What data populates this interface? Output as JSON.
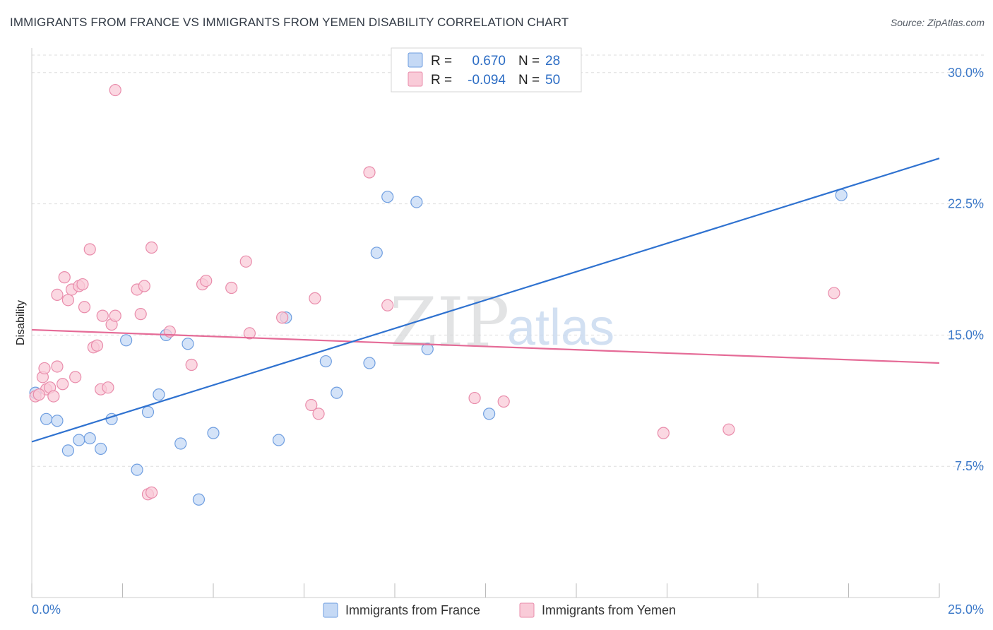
{
  "title": "IMMIGRANTS FROM FRANCE VS IMMIGRANTS FROM YEMEN DISABILITY CORRELATION CHART",
  "source": "Source: ZipAtlas.com",
  "watermark": {
    "zip": "ZIP",
    "atlas": "atlas"
  },
  "colors": {
    "france_fill": "#c5d9f5",
    "france_stroke": "#6f9ee0",
    "france_line": "#2f72d0",
    "yemen_fill": "#f9cbd8",
    "yemen_stroke": "#e98cab",
    "yemen_line": "#e56b97",
    "axis_text": "#3b78c8",
    "grid": "#dddddd"
  },
  "legend": {
    "rows": [
      {
        "r_label": "R =",
        "r_value": "0.670",
        "n_label": "N =",
        "n_value": "28"
      },
      {
        "r_label": "R =",
        "r_value": "-0.094",
        "n_label": "N =",
        "n_value": "50"
      }
    ]
  },
  "chart_data": {
    "type": "scatter",
    "title": "IMMIGRANTS FROM FRANCE VS IMMIGRANTS FROM YEMEN DISABILITY CORRELATION CHART",
    "xlabel": "",
    "ylabel": "Disability",
    "xlim": [
      0,
      25
    ],
    "ylim": [
      0,
      31
    ],
    "x_tick_labels": [
      "0.0%",
      "25.0%"
    ],
    "y_ticks": [
      7.5,
      15.0,
      22.5,
      30.0
    ],
    "y_tick_labels": [
      "7.5%",
      "15.0%",
      "22.5%",
      "30.0%"
    ],
    "grid": true,
    "legend_position": "top-center",
    "series": [
      {
        "name": "Immigrants from France",
        "r": 0.67,
        "n": 28,
        "trend": {
          "x": [
            0,
            25
          ],
          "y": [
            8.9,
            25.1
          ]
        },
        "points": [
          [
            0.1,
            11.7
          ],
          [
            0.4,
            10.2
          ],
          [
            0.7,
            10.1
          ],
          [
            1.0,
            8.4
          ],
          [
            1.3,
            9.0
          ],
          [
            1.6,
            9.1
          ],
          [
            1.9,
            8.5
          ],
          [
            2.2,
            10.2
          ],
          [
            2.6,
            14.7
          ],
          [
            2.9,
            7.3
          ],
          [
            3.2,
            10.6
          ],
          [
            3.5,
            11.6
          ],
          [
            3.7,
            15.0
          ],
          [
            4.1,
            8.8
          ],
          [
            4.3,
            14.5
          ],
          [
            4.6,
            5.6
          ],
          [
            5.0,
            9.4
          ],
          [
            6.8,
            9.0
          ],
          [
            7.0,
            16.0
          ],
          [
            8.1,
            13.5
          ],
          [
            8.4,
            11.7
          ],
          [
            9.3,
            13.4
          ],
          [
            9.5,
            19.7
          ],
          [
            9.8,
            22.9
          ],
          [
            10.6,
            22.6
          ],
          [
            10.9,
            14.2
          ],
          [
            12.6,
            10.5
          ],
          [
            22.3,
            23.0
          ]
        ]
      },
      {
        "name": "Immigrants from Yemen",
        "r": -0.094,
        "n": 50,
        "trend": {
          "x": [
            0,
            25
          ],
          "y": [
            15.3,
            13.4
          ]
        },
        "points": [
          [
            0.1,
            11.5
          ],
          [
            0.3,
            12.6
          ],
          [
            0.35,
            13.1
          ],
          [
            0.4,
            11.9
          ],
          [
            0.5,
            12.0
          ],
          [
            0.6,
            11.5
          ],
          [
            0.7,
            13.2
          ],
          [
            0.7,
            17.3
          ],
          [
            0.85,
            12.2
          ],
          [
            0.9,
            18.3
          ],
          [
            1.0,
            17.0
          ],
          [
            1.1,
            17.6
          ],
          [
            1.2,
            12.6
          ],
          [
            1.3,
            17.8
          ],
          [
            1.4,
            17.9
          ],
          [
            1.45,
            16.6
          ],
          [
            1.6,
            19.9
          ],
          [
            1.7,
            14.3
          ],
          [
            1.8,
            14.4
          ],
          [
            1.9,
            11.9
          ],
          [
            1.95,
            16.1
          ],
          [
            2.1,
            12.0
          ],
          [
            2.2,
            15.6
          ],
          [
            2.3,
            16.1
          ],
          [
            2.3,
            29.0
          ],
          [
            2.9,
            17.6
          ],
          [
            3.0,
            16.2
          ],
          [
            3.1,
            17.8
          ],
          [
            3.2,
            5.9
          ],
          [
            3.3,
            6.0
          ],
          [
            3.3,
            20.0
          ],
          [
            3.8,
            15.2
          ],
          [
            4.4,
            13.3
          ],
          [
            4.7,
            17.9
          ],
          [
            4.8,
            18.1
          ],
          [
            5.5,
            17.7
          ],
          [
            5.9,
            19.2
          ],
          [
            6.0,
            15.1
          ],
          [
            6.9,
            16.0
          ],
          [
            7.7,
            11.0
          ],
          [
            7.8,
            17.1
          ],
          [
            7.9,
            10.5
          ],
          [
            9.3,
            24.3
          ],
          [
            9.8,
            16.7
          ],
          [
            12.2,
            11.4
          ],
          [
            13.0,
            11.2
          ],
          [
            17.4,
            9.4
          ],
          [
            19.2,
            9.6
          ],
          [
            22.1,
            17.4
          ],
          [
            0.2,
            11.6
          ]
        ]
      }
    ]
  }
}
